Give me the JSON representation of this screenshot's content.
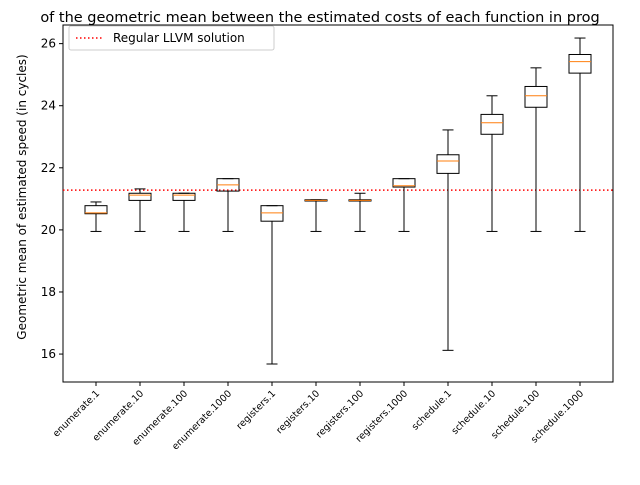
{
  "chart_data": {
    "type": "box",
    "title": "of the geometric mean between the estimated costs of each function in prog",
    "ylabel": "Geometric mean of estimated speed (in cycles)",
    "xlabel": "",
    "ylim": [
      15.1,
      26.6
    ],
    "yticks": [
      16,
      18,
      20,
      22,
      24,
      26
    ],
    "ytick_labels": [
      "16",
      "18",
      "20",
      "22",
      "24",
      "26"
    ],
    "grid": false,
    "legend": {
      "position": "top-left",
      "entries": [
        "Regular LLVM solution"
      ]
    },
    "reference_line": {
      "label": "Regular LLVM solution",
      "value": 21.28,
      "color": "#ff0000",
      "style": "dotted"
    },
    "box_color": "#000000",
    "median_color": "#ff7f0e",
    "categories": [
      "enumerate.1",
      "enumerate.10",
      "enumerate.100",
      "enumerate.1000",
      "registers.1",
      "registers.10",
      "registers.100",
      "registers.1000",
      "schedule.1",
      "schedule.10",
      "schedule.100",
      "schedule.1000"
    ],
    "boxes": [
      {
        "whislo": 19.95,
        "q1": 20.52,
        "med": 20.55,
        "q3": 20.78,
        "whishi": 20.9
      },
      {
        "whislo": 19.95,
        "q1": 20.95,
        "med": 21.12,
        "q3": 21.18,
        "whishi": 21.32
      },
      {
        "whislo": 19.95,
        "q1": 20.95,
        "med": 21.12,
        "q3": 21.18,
        "whishi": 21.18
      },
      {
        "whislo": 19.95,
        "q1": 21.25,
        "med": 21.45,
        "q3": 21.65,
        "whishi": 21.65
      },
      {
        "whislo": 15.68,
        "q1": 20.28,
        "med": 20.55,
        "q3": 20.78,
        "whishi": 20.78
      },
      {
        "whislo": 19.95,
        "q1": 20.93,
        "med": 20.95,
        "q3": 20.97,
        "whishi": 20.97
      },
      {
        "whislo": 19.95,
        "q1": 20.93,
        "med": 20.95,
        "q3": 20.97,
        "whishi": 21.18
      },
      {
        "whislo": 19.95,
        "q1": 21.38,
        "med": 21.42,
        "q3": 21.65,
        "whishi": 21.65
      },
      {
        "whislo": 16.12,
        "q1": 21.82,
        "med": 22.22,
        "q3": 22.42,
        "whishi": 23.22
      },
      {
        "whislo": 19.95,
        "q1": 23.08,
        "med": 23.45,
        "q3": 23.72,
        "whishi": 24.32
      },
      {
        "whislo": 19.95,
        "q1": 23.95,
        "med": 24.32,
        "q3": 24.62,
        "whishi": 25.22
      },
      {
        "whislo": 19.95,
        "q1": 25.05,
        "med": 25.42,
        "q3": 25.65,
        "whishi": 26.18
      }
    ]
  }
}
